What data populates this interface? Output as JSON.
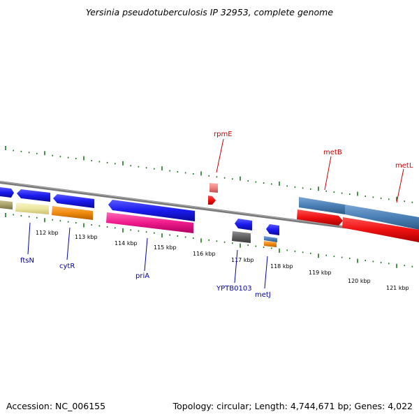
{
  "title": "Yersinia pseudotuberculosis IP 32953, complete genome",
  "footer": {
    "accession": "Accession: NC_006155",
    "summary": "Topology: circular; Length: 4,744,671 bp; Genes: 4,022"
  },
  "colors": {
    "tick": "#1e7a1e",
    "backbone": "#8a8a8a",
    "blue": "#1a1aee",
    "red": "#ee1111",
    "steelblue": "#4a7fb5",
    "khaki": "#ede7a0",
    "orange": "#f08a10",
    "magenta": "#ee1a8a",
    "darkgray": "#606060",
    "salmon": "#f08080",
    "label_top": "#cc0000",
    "label_bottom": "#0000aa"
  },
  "scale_labels": [
    "112 kbp",
    "113 kbp",
    "114 kbp",
    "115 kbp",
    "116 kbp",
    "117 kbp",
    "118 kbp",
    "119 kbp",
    "120 kbp",
    "121 kbp"
  ],
  "genes_top": [
    {
      "name": "rpmE"
    },
    {
      "name": "metB"
    },
    {
      "name": "metL"
    }
  ],
  "genes_bottom": [
    {
      "name": "ftsN"
    },
    {
      "name": "cytR"
    },
    {
      "name": "priA"
    },
    {
      "name": "YPTB0103"
    },
    {
      "name": "metJ"
    }
  ]
}
